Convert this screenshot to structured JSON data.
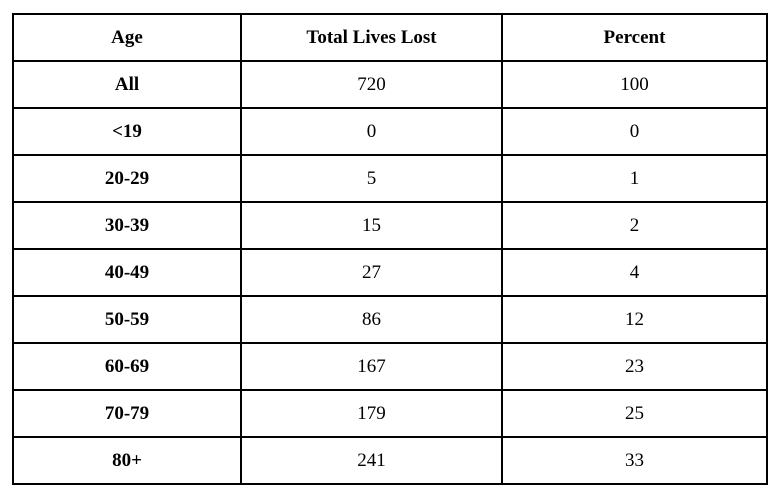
{
  "chart_data": {
    "type": "table",
    "title": "",
    "columns": [
      "Age",
      "Total Lives Lost",
      "Percent"
    ],
    "rows": [
      {
        "age": "All",
        "total_lives_lost": "720",
        "percent": "100"
      },
      {
        "age": "<19",
        "total_lives_lost": "0",
        "percent": "0"
      },
      {
        "age": "20-29",
        "total_lives_lost": "5",
        "percent": "1"
      },
      {
        "age": "30-39",
        "total_lives_lost": "15",
        "percent": "2"
      },
      {
        "age": "40-49",
        "total_lives_lost": "27",
        "percent": "4"
      },
      {
        "age": "50-59",
        "total_lives_lost": "86",
        "percent": "12"
      },
      {
        "age": "60-69",
        "total_lives_lost": "167",
        "percent": "23"
      },
      {
        "age": "70-79",
        "total_lives_lost": "179",
        "percent": "25"
      },
      {
        "age": "80+",
        "total_lives_lost": "241",
        "percent": "33"
      }
    ],
    "layout": {
      "grid": true,
      "header_bold": true,
      "first_column_bold": true
    }
  },
  "colors": {
    "border": "#000000",
    "background": "#ffffff",
    "text": "#000000"
  }
}
